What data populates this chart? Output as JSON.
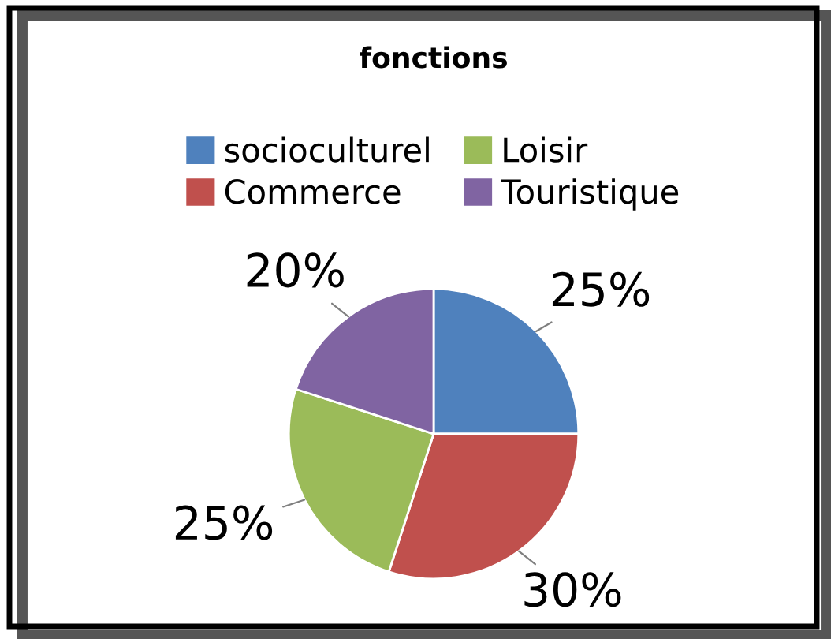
{
  "chart_data": {
    "type": "pie",
    "title": "fonctions",
    "categories": [
      "socioculturel",
      "Commerce",
      "Loisir",
      "Touristique"
    ],
    "values": [
      25,
      30,
      25,
      20
    ],
    "value_labels": [
      "25%",
      "30%",
      "25%",
      "20%"
    ],
    "colors": [
      "#4f81bd",
      "#c0504d",
      "#9bbb59",
      "#8064a2"
    ],
    "legend": "top"
  }
}
